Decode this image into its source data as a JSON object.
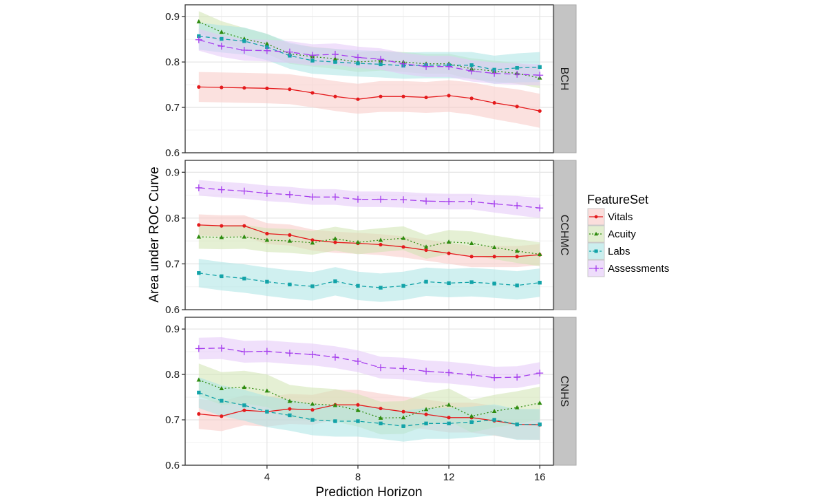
{
  "chart_data": {
    "type": "line",
    "title": "",
    "xlabel": "Prediction Horizon",
    "ylabel": "Area under ROC Curve",
    "x": [
      1,
      2,
      3,
      4,
      5,
      6,
      7,
      8,
      9,
      10,
      11,
      12,
      13,
      14,
      15,
      16
    ],
    "xlim": [
      0.4,
      16.6
    ],
    "xticks": [
      4,
      8,
      12,
      16
    ],
    "ylim": [
      0.6,
      0.926
    ],
    "yticks": [
      0.6,
      0.7,
      0.8,
      0.9
    ],
    "ytick_labels": [
      "0.6",
      "0.7",
      "0.8",
      "0.9"
    ],
    "grid": true,
    "legend": {
      "title": "FeatureSet",
      "position": "right",
      "entries": [
        {
          "name": "Vitals",
          "color": "#e41a1c",
          "linestyle": "solid",
          "marker": "circle",
          "ribbon": "#f8c8c4"
        },
        {
          "name": "Acuity",
          "color": "#2e8b0e",
          "linestyle": "dotted",
          "marker": "triangle",
          "ribbon": "#cfe3b0"
        },
        {
          "name": "Labs",
          "color": "#13a3a8",
          "linestyle": "dashed",
          "marker": "square",
          "ribbon": "#a9e3e3"
        },
        {
          "name": "Assessments",
          "color": "#a53ded",
          "linestyle": "longdash",
          "marker": "plus",
          "ribbon": "#e3c7f8"
        }
      ]
    },
    "facets": [
      {
        "label": "BCH",
        "series": [
          {
            "name": "Vitals",
            "values": [
              0.745,
              0.744,
              0.743,
              0.742,
              0.74,
              0.732,
              0.724,
              0.718,
              0.724,
              0.724,
              0.722,
              0.726,
              0.72,
              0.71,
              0.702,
              0.692
            ],
            "lower": [
              0.712,
              0.711,
              0.71,
              0.709,
              0.707,
              0.7,
              0.692,
              0.686,
              0.69,
              0.69,
              0.688,
              0.69,
              0.684,
              0.674,
              0.665,
              0.655
            ],
            "upper": [
              0.778,
              0.777,
              0.776,
              0.775,
              0.773,
              0.766,
              0.758,
              0.752,
              0.758,
              0.758,
              0.756,
              0.76,
              0.755,
              0.746,
              0.74,
              0.73
            ]
          },
          {
            "name": "Acuity",
            "values": [
              0.889,
              0.866,
              0.851,
              0.84,
              0.818,
              0.812,
              0.807,
              0.8,
              0.803,
              0.8,
              0.796,
              0.796,
              0.785,
              0.78,
              0.775,
              0.765
            ],
            "lower": [
              0.865,
              0.842,
              0.828,
              0.818,
              0.796,
              0.79,
              0.785,
              0.778,
              0.781,
              0.778,
              0.774,
              0.774,
              0.762,
              0.757,
              0.752,
              0.742
            ],
            "upper": [
              0.912,
              0.89,
              0.875,
              0.862,
              0.84,
              0.834,
              0.829,
              0.822,
              0.825,
              0.822,
              0.818,
              0.818,
              0.808,
              0.803,
              0.798,
              0.788
            ]
          },
          {
            "name": "Labs",
            "values": [
              0.857,
              0.851,
              0.846,
              0.833,
              0.814,
              0.803,
              0.8,
              0.797,
              0.795,
              0.792,
              0.793,
              0.793,
              0.793,
              0.783,
              0.787,
              0.789
            ],
            "lower": [
              0.827,
              0.821,
              0.816,
              0.804,
              0.785,
              0.774,
              0.771,
              0.768,
              0.766,
              0.763,
              0.764,
              0.764,
              0.764,
              0.752,
              0.755,
              0.756
            ],
            "upper": [
              0.887,
              0.881,
              0.876,
              0.862,
              0.843,
              0.832,
              0.829,
              0.826,
              0.824,
              0.821,
              0.822,
              0.822,
              0.822,
              0.814,
              0.819,
              0.822
            ]
          },
          {
            "name": "Assessments",
            "values": [
              0.849,
              0.835,
              0.826,
              0.825,
              0.822,
              0.815,
              0.817,
              0.81,
              0.806,
              0.796,
              0.79,
              0.79,
              0.78,
              0.775,
              0.773,
              0.771
            ],
            "lower": [
              0.825,
              0.811,
              0.803,
              0.801,
              0.798,
              0.792,
              0.794,
              0.787,
              0.783,
              0.773,
              0.767,
              0.767,
              0.757,
              0.752,
              0.75,
              0.748
            ],
            "upper": [
              0.873,
              0.859,
              0.85,
              0.849,
              0.846,
              0.839,
              0.841,
              0.834,
              0.83,
              0.82,
              0.814,
              0.814,
              0.804,
              0.799,
              0.797,
              0.795
            ]
          }
        ]
      },
      {
        "label": "CCHMC",
        "series": [
          {
            "name": "Vitals",
            "values": [
              0.785,
              0.783,
              0.783,
              0.766,
              0.763,
              0.752,
              0.747,
              0.745,
              0.742,
              0.737,
              0.73,
              0.723,
              0.716,
              0.716,
              0.716,
              0.72
            ],
            "lower": [
              0.762,
              0.76,
              0.76,
              0.743,
              0.74,
              0.729,
              0.724,
              0.722,
              0.719,
              0.714,
              0.707,
              0.7,
              0.693,
              0.693,
              0.693,
              0.697
            ],
            "upper": [
              0.808,
              0.806,
              0.806,
              0.789,
              0.786,
              0.775,
              0.77,
              0.768,
              0.765,
              0.76,
              0.753,
              0.746,
              0.739,
              0.739,
              0.739,
              0.743
            ]
          },
          {
            "name": "Acuity",
            "values": [
              0.759,
              0.758,
              0.759,
              0.752,
              0.75,
              0.746,
              0.755,
              0.747,
              0.752,
              0.756,
              0.737,
              0.748,
              0.745,
              0.736,
              0.728,
              0.721
            ],
            "lower": [
              0.733,
              0.732,
              0.733,
              0.726,
              0.724,
              0.72,
              0.729,
              0.721,
              0.726,
              0.73,
              0.711,
              0.722,
              0.719,
              0.71,
              0.702,
              0.695
            ],
            "upper": [
              0.785,
              0.784,
              0.785,
              0.778,
              0.776,
              0.772,
              0.781,
              0.773,
              0.778,
              0.782,
              0.763,
              0.774,
              0.771,
              0.762,
              0.754,
              0.747
            ]
          },
          {
            "name": "Labs",
            "values": [
              0.68,
              0.673,
              0.668,
              0.661,
              0.655,
              0.651,
              0.662,
              0.652,
              0.648,
              0.652,
              0.661,
              0.658,
              0.66,
              0.657,
              0.653,
              0.659
            ],
            "lower": [
              0.649,
              0.642,
              0.637,
              0.63,
              0.624,
              0.62,
              0.631,
              0.621,
              0.617,
              0.621,
              0.63,
              0.627,
              0.629,
              0.626,
              0.622,
              0.628
            ],
            "upper": [
              0.711,
              0.704,
              0.699,
              0.692,
              0.686,
              0.682,
              0.693,
              0.683,
              0.679,
              0.683,
              0.692,
              0.689,
              0.691,
              0.688,
              0.684,
              0.69
            ]
          },
          {
            "name": "Assessments",
            "values": [
              0.866,
              0.862,
              0.859,
              0.854,
              0.851,
              0.846,
              0.846,
              0.841,
              0.841,
              0.84,
              0.837,
              0.836,
              0.836,
              0.831,
              0.827,
              0.822
            ],
            "lower": [
              0.849,
              0.845,
              0.842,
              0.837,
              0.834,
              0.829,
              0.829,
              0.824,
              0.824,
              0.823,
              0.82,
              0.819,
              0.819,
              0.812,
              0.806,
              0.8
            ],
            "upper": [
              0.883,
              0.879,
              0.876,
              0.871,
              0.868,
              0.863,
              0.863,
              0.858,
              0.858,
              0.857,
              0.854,
              0.853,
              0.853,
              0.85,
              0.848,
              0.844
            ]
          }
        ]
      },
      {
        "label": "CNHS",
        "series": [
          {
            "name": "Vitals",
            "values": [
              0.713,
              0.708,
              0.721,
              0.718,
              0.724,
              0.722,
              0.733,
              0.733,
              0.725,
              0.718,
              0.712,
              0.705,
              0.705,
              0.698,
              0.69,
              0.689
            ],
            "lower": [
              0.68,
              0.675,
              0.688,
              0.685,
              0.691,
              0.689,
              0.7,
              0.7,
              0.692,
              0.685,
              0.679,
              0.672,
              0.672,
              0.665,
              0.657,
              0.656
            ],
            "upper": [
              0.746,
              0.741,
              0.754,
              0.751,
              0.757,
              0.755,
              0.766,
              0.766,
              0.758,
              0.751,
              0.745,
              0.738,
              0.738,
              0.731,
              0.723,
              0.722
            ]
          },
          {
            "name": "Acuity",
            "values": [
              0.788,
              0.769,
              0.772,
              0.764,
              0.741,
              0.735,
              0.732,
              0.721,
              0.704,
              0.705,
              0.723,
              0.733,
              0.708,
              0.719,
              0.727,
              0.737
            ],
            "lower": [
              0.752,
              0.733,
              0.736,
              0.728,
              0.705,
              0.699,
              0.696,
              0.685,
              0.668,
              0.669,
              0.687,
              0.697,
              0.672,
              0.683,
              0.691,
              0.701
            ],
            "upper": [
              0.824,
              0.805,
              0.808,
              0.8,
              0.777,
              0.771,
              0.768,
              0.757,
              0.74,
              0.741,
              0.759,
              0.769,
              0.744,
              0.755,
              0.763,
              0.773
            ]
          },
          {
            "name": "Labs",
            "values": [
              0.76,
              0.742,
              0.732,
              0.718,
              0.71,
              0.7,
              0.697,
              0.697,
              0.692,
              0.686,
              0.692,
              0.692,
              0.695,
              0.7,
              0.69,
              0.69
            ],
            "lower": [
              0.726,
              0.708,
              0.698,
              0.684,
              0.676,
              0.666,
              0.663,
              0.663,
              0.658,
              0.652,
              0.658,
              0.658,
              0.661,
              0.666,
              0.656,
              0.656
            ],
            "upper": [
              0.794,
              0.776,
              0.766,
              0.752,
              0.744,
              0.734,
              0.731,
              0.731,
              0.726,
              0.72,
              0.726,
              0.726,
              0.729,
              0.734,
              0.724,
              0.724
            ]
          },
          {
            "name": "Assessments",
            "values": [
              0.857,
              0.858,
              0.85,
              0.851,
              0.847,
              0.844,
              0.838,
              0.829,
              0.815,
              0.813,
              0.807,
              0.804,
              0.799,
              0.793,
              0.794,
              0.803
            ],
            "lower": [
              0.833,
              0.834,
              0.826,
              0.827,
              0.823,
              0.82,
              0.814,
              0.805,
              0.791,
              0.789,
              0.783,
              0.78,
              0.775,
              0.769,
              0.77,
              0.779
            ],
            "upper": [
              0.881,
              0.882,
              0.874,
              0.875,
              0.871,
              0.868,
              0.862,
              0.853,
              0.839,
              0.837,
              0.831,
              0.828,
              0.823,
              0.817,
              0.818,
              0.827
            ]
          }
        ]
      }
    ]
  }
}
